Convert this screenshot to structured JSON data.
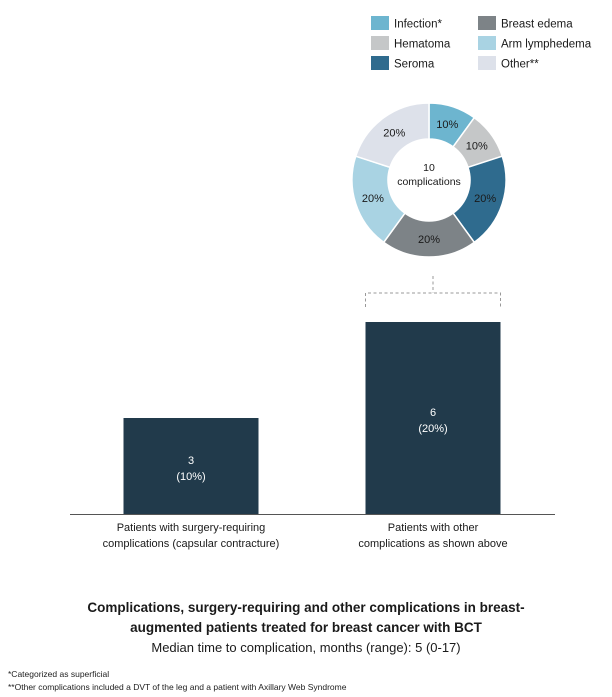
{
  "chart_data": [
    {
      "type": "bar",
      "categories": [
        "Patients with surgery-requiring complications (capsular contracture)",
        "Patients with other complications as shown above"
      ],
      "category_lines": [
        [
          "Patients with surgery-requiring",
          "complications (capsular contracture)"
        ],
        [
          "Patients with other",
          "complications as shown above"
        ]
      ],
      "values": [
        3,
        6
      ],
      "value_labels": [
        "3",
        "6"
      ],
      "percent_labels": [
        "(10%)",
        "(20%)"
      ],
      "bar_color": "#213a4b",
      "ylim": [
        0,
        6
      ]
    },
    {
      "type": "pie",
      "donut": true,
      "center_text": [
        "10",
        "complications"
      ],
      "slices": [
        {
          "name": "Infection*",
          "value": 10,
          "label": "10%",
          "color": "#6db5cf"
        },
        {
          "name": "Hematoma",
          "value": 10,
          "label": "10%",
          "color": "#c5c7c8"
        },
        {
          "name": "Seroma",
          "value": 20,
          "label": "20%",
          "color": "#2f6b8e"
        },
        {
          "name": "Breast edema",
          "value": 20,
          "label": "20%",
          "color": "#7d8387"
        },
        {
          "name": "Arm lymphedema",
          "value": 20,
          "label": "20%",
          "color": "#a9d3e3"
        },
        {
          "name": "Other**",
          "value": 20,
          "label": "20%",
          "color": "#dde1ea"
        }
      ],
      "legend_order": [
        "Infection*",
        "Breast edema",
        "Hematoma",
        "Arm lymphedema",
        "Seroma",
        "Other**"
      ]
    }
  ],
  "caption": {
    "title_line1": "Complications, surgery-requiring and other complications in breast-",
    "title_line2": "augmented patients treated for breast cancer with BCT",
    "subtitle": "Median time to complication, months (range): 5 (0-17)"
  },
  "footnotes": [
    "*Categorized as superficial",
    "**Other complications included a DVT of the leg and a patient with Axillary Web Syndrome"
  ]
}
